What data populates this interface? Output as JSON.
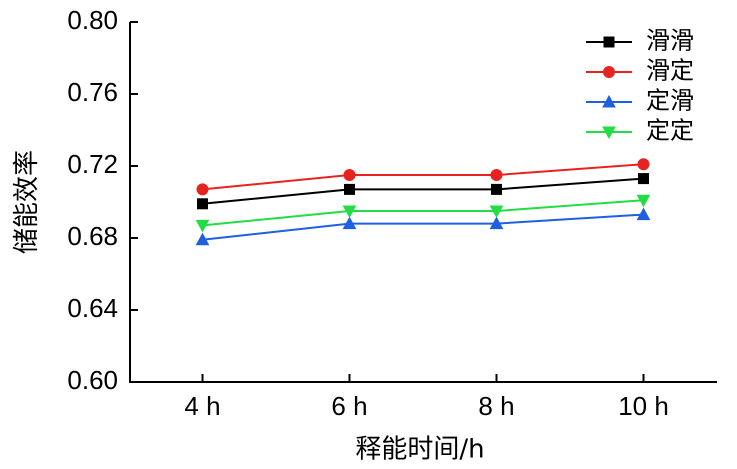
{
  "chart_data": {
    "type": "line",
    "x_label": "释能时间/h",
    "y_label": "储能效率",
    "categories": [
      "4 h",
      "6 h",
      "8 h",
      "10 h"
    ],
    "series": [
      {
        "name": "滑滑",
        "color": "#000000",
        "marker": "square",
        "values": [
          0.699,
          0.707,
          0.707,
          0.713
        ]
      },
      {
        "name": "滑定",
        "color": "#e8231f",
        "marker": "circle",
        "values": [
          0.707,
          0.715,
          0.715,
          0.721
        ]
      },
      {
        "name": "定滑",
        "color": "#1f5fe0",
        "marker": "triangle-up",
        "values": [
          0.679,
          0.688,
          0.688,
          0.693
        ]
      },
      {
        "name": "定定",
        "color": "#22dd44",
        "marker": "triangle-down",
        "values": [
          0.687,
          0.695,
          0.695,
          0.701
        ]
      }
    ],
    "ylim": [
      0.6,
      0.8
    ],
    "yticks": [
      {
        "value": 0.6,
        "label": "0.60"
      },
      {
        "value": 0.64,
        "label": "0.64"
      },
      {
        "value": 0.68,
        "label": "0.68"
      },
      {
        "value": 0.72,
        "label": "0.72"
      },
      {
        "value": 0.76,
        "label": "0.76"
      },
      {
        "value": 0.8,
        "label": "0.80"
      }
    ],
    "grid": false,
    "legend": "top-right"
  }
}
